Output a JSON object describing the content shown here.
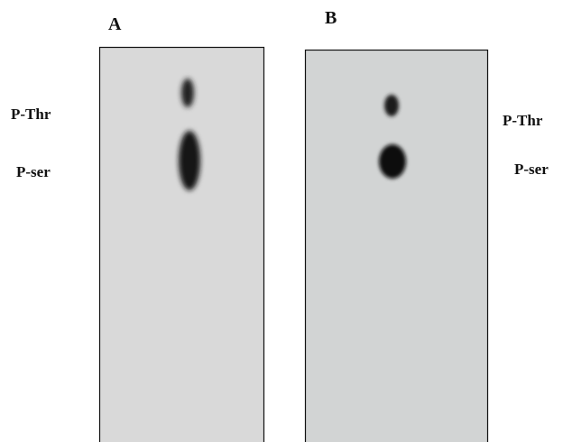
{
  "panels": [
    {
      "label": "A",
      "left_labels": [
        "P-Thr",
        "P-ser"
      ]
    },
    {
      "label": "B",
      "right_labels": [
        "P-Thr",
        "P-ser"
      ]
    }
  ]
}
